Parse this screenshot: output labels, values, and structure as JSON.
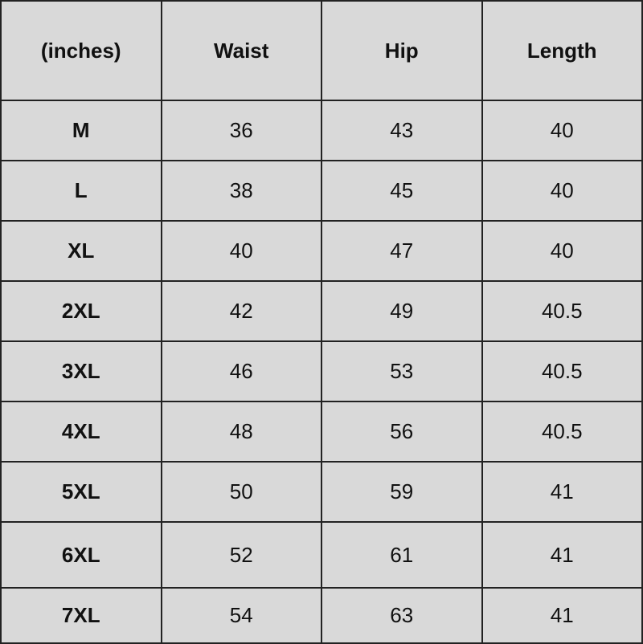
{
  "headers": [
    "(inches)",
    "Waist",
    "Hip",
    "Length"
  ],
  "rows": [
    [
      "M",
      "36",
      "43",
      "40"
    ],
    [
      "L",
      "38",
      "45",
      "40"
    ],
    [
      "XL",
      "40",
      "47",
      "40"
    ],
    [
      "2XL",
      "42",
      "49",
      "40.5"
    ],
    [
      "3XL",
      "46",
      "53",
      "40.5"
    ],
    [
      "4XL",
      "48",
      "56",
      "40.5"
    ],
    [
      "5XL",
      "50",
      "59",
      "41"
    ],
    [
      "6XL",
      "52",
      "61",
      "41"
    ],
    [
      "7XL",
      "54",
      "63",
      "41"
    ]
  ],
  "colors": {
    "background": "#d9d9d9",
    "border": "#222222",
    "text": "#111111"
  }
}
